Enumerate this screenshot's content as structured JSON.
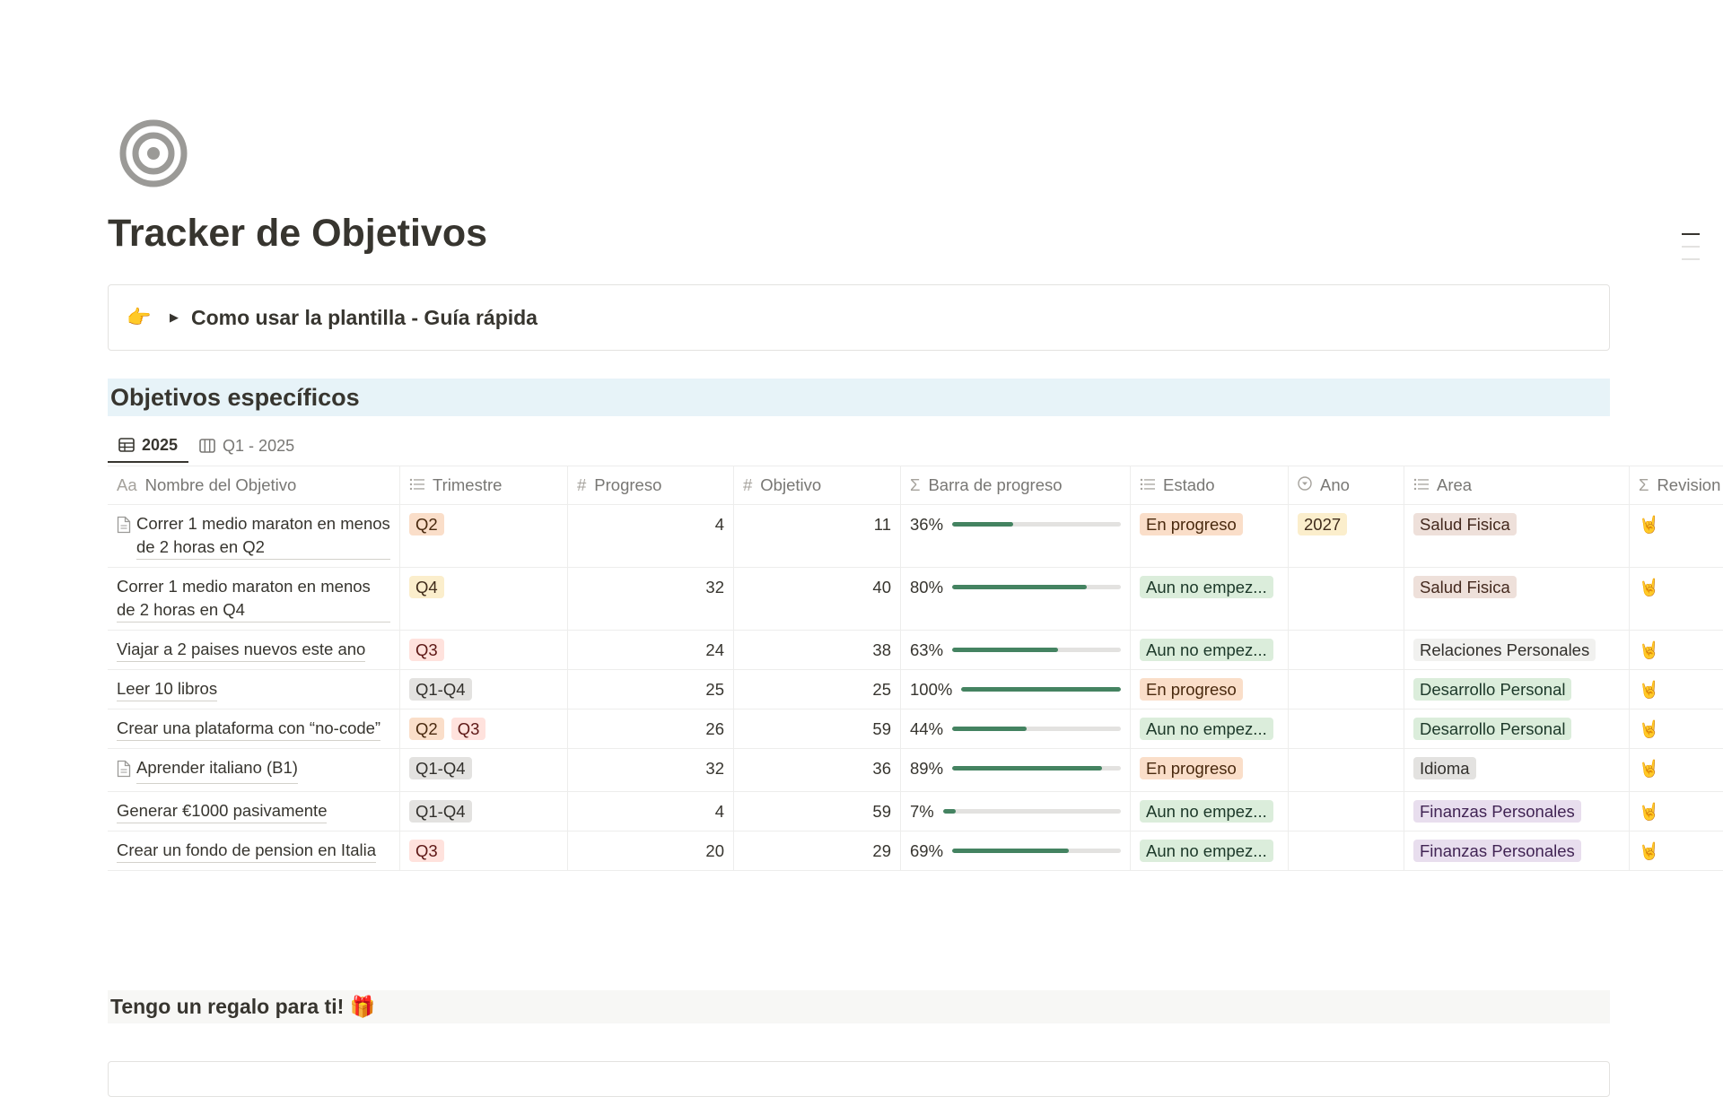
{
  "page": {
    "icon": "target-icon",
    "title": "Tracker de Objetivos",
    "callout": {
      "emoji": "👉",
      "label": "Como usar la plantilla - Guía rápida"
    },
    "section_title": "Objetivos específicos",
    "gift_heading": "Tengo un regalo para ti! 🎁"
  },
  "tabs": [
    {
      "label": "2025",
      "icon": "table-icon",
      "active": true
    },
    {
      "label": "Q1 - 2025",
      "icon": "board-icon",
      "active": false
    }
  ],
  "columns": [
    {
      "icon": "Aa",
      "label": "Nombre del Objetivo"
    },
    {
      "icon": "list-icon",
      "label": "Trimestre"
    },
    {
      "icon": "#",
      "label": "Progreso"
    },
    {
      "icon": "#",
      "label": "Objetivo"
    },
    {
      "icon": "Σ",
      "label": "Barra de progreso"
    },
    {
      "icon": "list-icon",
      "label": "Estado"
    },
    {
      "icon": "select-icon",
      "label": "Ano"
    },
    {
      "icon": "list-icon",
      "label": "Area"
    },
    {
      "icon": "Σ",
      "label": "Revision"
    }
  ],
  "tag_colors": {
    "Q2": [
      "#fadec9",
      "#49290e"
    ],
    "Q3": [
      "#ffe2dd",
      "#5d1715"
    ],
    "Q4": [
      "#fbeecc",
      "#402c1b"
    ],
    "Q1-Q4": [
      "#e3e2e0",
      "#32302c"
    ],
    "En progreso": [
      "#fadec9",
      "#49290e"
    ],
    "Aun no empez...": [
      "#dbeddb",
      "#1c3829"
    ],
    "2027": [
      "#fbeecc",
      "#402c1b"
    ],
    "Salud Fisica": [
      "#eee0da",
      "#44291e"
    ],
    "Relaciones Personales": [
      "#f1f1ef",
      "#32302c"
    ],
    "Desarrollo Personal": [
      "#dbeddb",
      "#1c3829"
    ],
    "Idioma": [
      "#e3e2e0",
      "#32302c"
    ],
    "Finanzas Personales": [
      "#e8deee",
      "#412454"
    ]
  },
  "rows": [
    {
      "page_icon": true,
      "name": "Correr 1 medio maraton en menos de 2 horas en Q2",
      "trimestre": [
        "Q2"
      ],
      "progreso": 4,
      "objetivo": 11,
      "percent": 36,
      "estado": "En progreso",
      "ano": "2027",
      "area": "Salud Fisica",
      "revision": "🤘"
    },
    {
      "page_icon": false,
      "name": "Correr 1 medio maraton en menos de 2 horas en Q4",
      "trimestre": [
        "Q4"
      ],
      "progreso": 32,
      "objetivo": 40,
      "percent": 80,
      "estado": "Aun no empez...",
      "ano": "",
      "area": "Salud Fisica",
      "revision": "🤘"
    },
    {
      "page_icon": false,
      "name": "Viajar a 2 paises nuevos este ano",
      "trimestre": [
        "Q3"
      ],
      "progreso": 24,
      "objetivo": 38,
      "percent": 63,
      "estado": "Aun no empez...",
      "ano": "",
      "area": "Relaciones Personales",
      "revision": "🤘"
    },
    {
      "page_icon": false,
      "name": "Leer 10 libros",
      "trimestre": [
        "Q1-Q4"
      ],
      "progreso": 25,
      "objetivo": 25,
      "percent": 100,
      "estado": "En progreso",
      "ano": "",
      "area": "Desarrollo Personal",
      "revision": "🤘"
    },
    {
      "page_icon": false,
      "name": "Crear una plataforma con “no-code”",
      "trimestre": [
        "Q2",
        "Q3"
      ],
      "progreso": 26,
      "objetivo": 59,
      "percent": 44,
      "estado": "Aun no empez...",
      "ano": "",
      "area": "Desarrollo Personal",
      "revision": "🤘"
    },
    {
      "page_icon": true,
      "name": "Aprender italiano (B1)",
      "trimestre": [
        "Q1-Q4"
      ],
      "progreso": 32,
      "objetivo": 36,
      "percent": 89,
      "estado": "En progreso",
      "ano": "",
      "area": "Idioma",
      "revision": "🤘"
    },
    {
      "page_icon": false,
      "name": "Generar €1000 pasivamente",
      "trimestre": [
        "Q1-Q4"
      ],
      "progreso": 4,
      "objetivo": 59,
      "percent": 7,
      "estado": "Aun no empez...",
      "ano": "",
      "area": "Finanzas Personales",
      "revision": "🤘"
    },
    {
      "page_icon": false,
      "name": "Crear un fondo de pension en Italia",
      "trimestre": [
        "Q3"
      ],
      "progreso": 20,
      "objetivo": 29,
      "percent": 69,
      "estado": "Aun no empez...",
      "ano": "",
      "area": "Finanzas Personales",
      "revision": "🤘"
    }
  ]
}
